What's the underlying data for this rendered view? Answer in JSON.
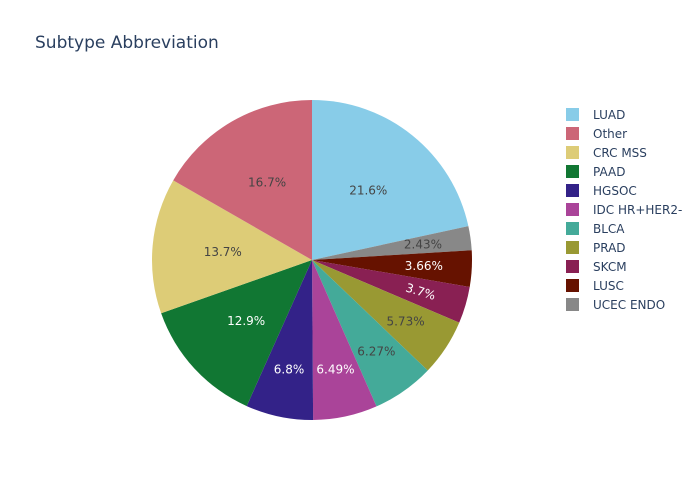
{
  "chart_data": {
    "type": "pie",
    "title": "Subtype Abbreviation",
    "slices": [
      {
        "label": "LUAD",
        "value": 21.6,
        "text": "21.6%",
        "color": "#88cce8",
        "text_color": "#444444"
      },
      {
        "label": "UCEC ENDO",
        "value": 2.43,
        "text": "2.43%",
        "color": "#888888",
        "text_color": "#444444"
      },
      {
        "label": "LUSC",
        "value": 3.66,
        "text": "3.66%",
        "color": "#661200",
        "text_color": "#ffffff"
      },
      {
        "label": "SKCM",
        "value": 3.7,
        "text": "3.7%",
        "color": "#892053",
        "text_color": "#ffffff"
      },
      {
        "label": "PRAD",
        "value": 5.73,
        "text": "5.73%",
        "color": "#999933",
        "text_color": "#444444"
      },
      {
        "label": "BLCA",
        "value": 6.27,
        "text": "6.27%",
        "color": "#44aa99",
        "text_color": "#444444"
      },
      {
        "label": "IDC HR+HER2-",
        "value": 6.49,
        "text": "6.49%",
        "color": "#aa4499",
        "text_color": "#ffffff"
      },
      {
        "label": "HGSOC",
        "value": 6.8,
        "text": "6.8%",
        "color": "#332288",
        "text_color": "#ffffff"
      },
      {
        "label": "PAAD",
        "value": 12.9,
        "text": "12.9%",
        "color": "#117733",
        "text_color": "#ffffff"
      },
      {
        "label": "CRC MSS",
        "value": 13.7,
        "text": "13.7%",
        "color": "#ddcc77",
        "text_color": "#444444"
      },
      {
        "label": "Other",
        "value": 16.7,
        "text": "16.7%",
        "color": "#cc6677",
        "text_color": "#444444"
      }
    ],
    "legend": {
      "position": "right",
      "order": [
        "LUAD",
        "Other",
        "CRC MSS",
        "PAAD",
        "HGSOC",
        "IDC HR+HER2-",
        "BLCA",
        "PRAD",
        "SKCM",
        "LUSC",
        "UCEC ENDO"
      ]
    }
  }
}
